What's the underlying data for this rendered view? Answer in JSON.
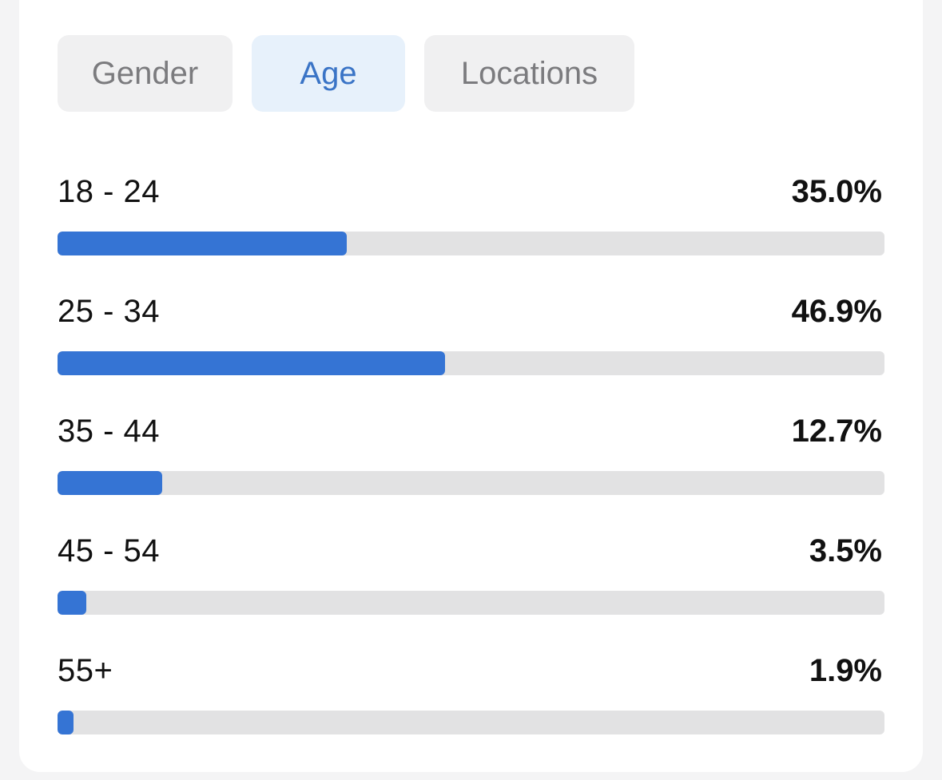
{
  "tabs": [
    {
      "label": "Gender",
      "active": false
    },
    {
      "label": "Age",
      "active": true
    },
    {
      "label": "Locations",
      "active": false
    }
  ],
  "age_breakdown": [
    {
      "label": "18 - 24",
      "value": "35.0%",
      "percent": 35.0
    },
    {
      "label": "25 - 34",
      "value": "46.9%",
      "percent": 46.9
    },
    {
      "label": "35 - 44",
      "value": "12.7%",
      "percent": 12.7
    },
    {
      "label": "45 - 54",
      "value": "3.5%",
      "percent": 3.5
    },
    {
      "label": "55+",
      "value": "1.9%",
      "percent": 1.9
    }
  ],
  "colors": {
    "accent": "#3574d4",
    "active_tab_text": "#3a74c6",
    "active_tab_bg": "#e7f1fb",
    "track": "#e2e2e3"
  }
}
